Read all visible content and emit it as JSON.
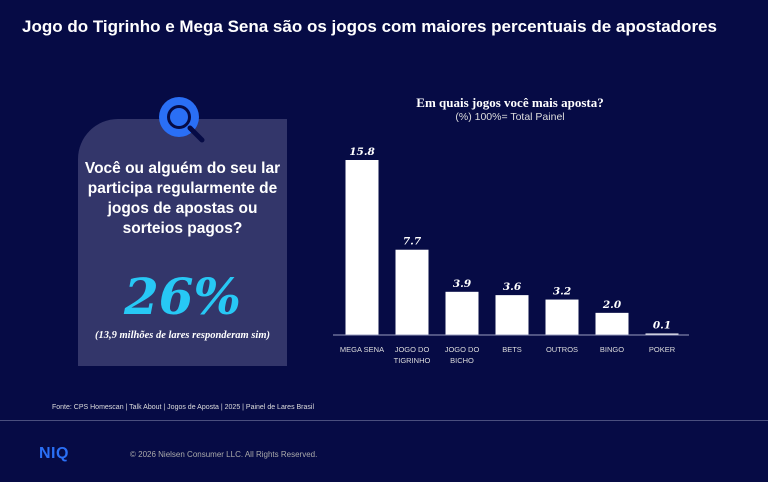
{
  "header": {
    "title": "Jogo do Tigrinho e Mega Sena são os jogos com maiores percentuais de apostadores"
  },
  "card": {
    "question": "Você ou alguém do seu lar participa regularmente de jogos de apostas ou sorteios pagos?",
    "percent": "26%",
    "note": "(13,9 milhões de lares responderam sim)"
  },
  "chart_data": {
    "type": "bar",
    "title": "Em quais jogos você mais aposta?",
    "subtitle": "(%) 100%= Total Painel",
    "categories": [
      [
        "MEGA SENA"
      ],
      [
        "JOGO DO",
        "TIGRINHO"
      ],
      [
        "JOGO DO",
        "BICHO"
      ],
      [
        "BETS"
      ],
      [
        "OUTROS"
      ],
      [
        "BINGO"
      ],
      [
        "POKER"
      ]
    ],
    "values": [
      15.8,
      7.7,
      3.9,
      3.6,
      3.2,
      2.0,
      0.1
    ],
    "labels": [
      "15.8",
      "7.7",
      "3.9",
      "3.6",
      "3.2",
      "2.0",
      "0.1"
    ],
    "ylim": [
      0,
      16
    ],
    "grid": false,
    "bar_color": "#ffffff"
  },
  "footer": {
    "source": "Fonte: CPS Homescan | Talk About | Jogos de Aposta | 2025 | Painel de Lares Brasil",
    "logo": "NIQ",
    "copyright": "© 2026 Nielsen Consumer LLC. All Rights Reserved."
  }
}
